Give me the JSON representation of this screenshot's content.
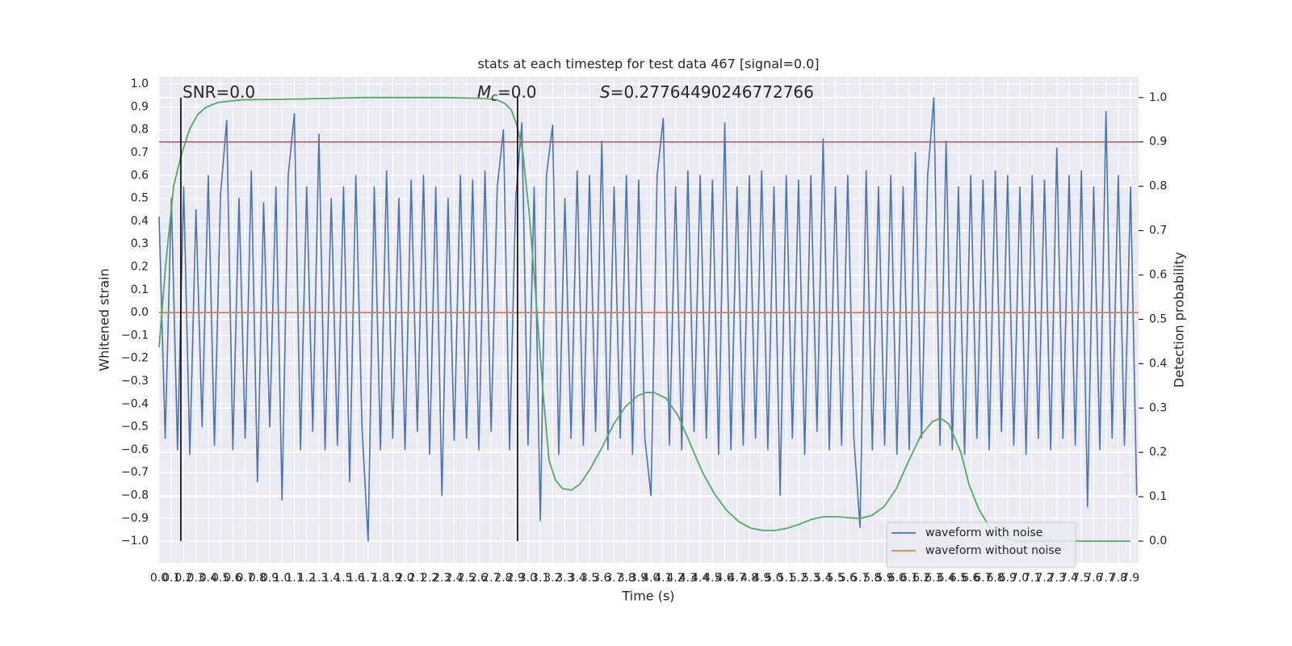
{
  "chart_data": {
    "type": "line",
    "title": "stats at each timestep for test data 467 [signal=0.0]",
    "xlabel": "Time (s)",
    "ylabel": "Whitened strain",
    "y2label": "Detection probability",
    "xlim": [
      0,
      7.965
    ],
    "ylim": [
      -1.095,
      1.032
    ],
    "y2lim": [
      -0.049,
      1.047
    ],
    "grid": true,
    "legend": "lower right",
    "xticks": [
      {
        "value": 0,
        "label": "0.0"
      },
      0.1,
      0.2,
      0.3,
      0.4,
      0.5,
      0.6,
      0.7,
      0.8,
      0.9,
      {
        "value": 1,
        "label": "1.0"
      },
      1.1,
      1.2,
      1.3,
      1.4,
      1.5,
      1.6,
      1.7,
      1.8,
      1.9,
      {
        "value": 2,
        "label": "2.0"
      },
      2.1,
      2.2,
      2.3,
      2.4,
      2.5,
      2.6,
      2.7,
      2.8,
      2.9,
      {
        "value": 3,
        "label": "3.0"
      },
      3.1,
      3.2,
      3.3,
      3.4,
      3.5,
      3.6,
      3.7,
      3.8,
      3.9,
      {
        "value": 4,
        "label": "4.0"
      },
      4.1,
      4.2,
      4.3,
      4.4,
      4.5,
      4.6,
      4.7,
      4.8,
      4.9,
      {
        "value": 5,
        "label": "5.0"
      },
      5.1,
      5.2,
      5.3,
      5.4,
      5.5,
      5.6,
      5.7,
      5.8,
      5.9,
      {
        "value": 6,
        "label": "6.0"
      },
      6.1,
      6.2,
      6.3,
      6.4,
      6.5,
      6.6,
      6.7,
      6.8,
      6.9,
      {
        "value": 7,
        "label": "7.0"
      },
      7.1,
      7.2,
      7.3,
      7.4,
      7.5,
      7.6,
      7.7,
      7.8,
      7.9
    ],
    "yticks": [
      {
        "value": -1,
        "label": "−1.0"
      },
      {
        "value": -0.9,
        "label": "−0.9"
      },
      {
        "value": -0.8,
        "label": "−0.8"
      },
      {
        "value": -0.7,
        "label": "−0.7"
      },
      {
        "value": -0.6,
        "label": "−0.6"
      },
      {
        "value": -0.5,
        "label": "−0.5"
      },
      {
        "value": -0.4,
        "label": "−0.4"
      },
      {
        "value": -0.3,
        "label": "−0.3"
      },
      {
        "value": -0.2,
        "label": "−0.2"
      },
      {
        "value": -0.1,
        "label": "−0.1"
      },
      {
        "value": 0,
        "label": "0.0"
      },
      0.1,
      0.2,
      0.3,
      0.4,
      0.5,
      0.6,
      0.7,
      0.8,
      0.9,
      {
        "value": 1,
        "label": "1.0"
      }
    ],
    "y2ticks": [
      {
        "value": 0,
        "label": "0.0"
      },
      0.1,
      0.2,
      0.3,
      0.4,
      0.5,
      0.6,
      0.7,
      0.8,
      0.9,
      {
        "value": 1,
        "label": "1.0"
      }
    ],
    "series": [
      {
        "name": "waveform with noise",
        "color": "#4c72b0",
        "axis": "y",
        "x": [
          0,
          0.05,
          0.1,
          0.15,
          0.2,
          0.25,
          0.3,
          0.35,
          0.4,
          0.45,
          0.5,
          0.55,
          0.6,
          0.65,
          0.7,
          0.75,
          0.8,
          0.85,
          0.9,
          0.95,
          1,
          1.05,
          1.1,
          1.15,
          1.2,
          1.25,
          1.3,
          1.35,
          1.4,
          1.45,
          1.5,
          1.55,
          1.6,
          1.65,
          1.7,
          1.75,
          1.8,
          1.85,
          1.9,
          1.95,
          2,
          2.05,
          2.1,
          2.15,
          2.2,
          2.25,
          2.3,
          2.35,
          2.4,
          2.45,
          2.5,
          2.55,
          2.6,
          2.65,
          2.7,
          2.75,
          2.8,
          2.85,
          2.9,
          2.95,
          3,
          3.05,
          3.1,
          3.15,
          3.2,
          3.25,
          3.3,
          3.35,
          3.4,
          3.45,
          3.5,
          3.55,
          3.6,
          3.65,
          3.7,
          3.75,
          3.8,
          3.85,
          3.9,
          3.95,
          4,
          4.05,
          4.1,
          4.15,
          4.2,
          4.25,
          4.3,
          4.35,
          4.4,
          4.45,
          4.5,
          4.55,
          4.6,
          4.65,
          4.7,
          4.75,
          4.8,
          4.85,
          4.9,
          4.95,
          5,
          5.05,
          5.1,
          5.15,
          5.2,
          5.25,
          5.3,
          5.35,
          5.4,
          5.45,
          5.5,
          5.55,
          5.6,
          5.65,
          5.7,
          5.75,
          5.8,
          5.85,
          5.9,
          5.95,
          6,
          6.05,
          6.1,
          6.15,
          6.2,
          6.25,
          6.3,
          6.35,
          6.4,
          6.45,
          6.5,
          6.55,
          6.6,
          6.65,
          6.7,
          6.75,
          6.8,
          6.85,
          6.9,
          6.95,
          7,
          7.05,
          7.1,
          7.15,
          7.2,
          7.25,
          7.3,
          7.35,
          7.4,
          7.45,
          7.5,
          7.55,
          7.6,
          7.65,
          7.7,
          7.75,
          7.8,
          7.85,
          7.9,
          7.95
        ],
        "values": [
          0.42,
          -0.55,
          0.5,
          -0.6,
          0.55,
          -0.62,
          0.45,
          -0.5,
          0.6,
          -0.58,
          0.52,
          0.84,
          -0.6,
          0.5,
          -0.55,
          0.62,
          -0.74,
          0.48,
          -0.5,
          0.55,
          -0.82,
          0.6,
          0.87,
          -0.6,
          0.55,
          -0.52,
          0.78,
          -0.6,
          0.5,
          -0.58,
          0.55,
          -0.74,
          0.6,
          -0.5,
          -1.0,
          0.55,
          -0.6,
          0.62,
          -0.55,
          0.5,
          -0.6,
          0.58,
          -0.52,
          0.6,
          -0.62,
          0.55,
          -0.8,
          0.5,
          -0.56,
          0.6,
          -0.55,
          0.58,
          -0.6,
          0.62,
          -0.52,
          0.55,
          0.8,
          -0.6,
          0.5,
          0.83,
          -0.58,
          0.55,
          -0.91,
          0.6,
          0.82,
          -0.62,
          0.5,
          -0.55,
          0.62,
          -0.58,
          0.6,
          -0.52,
          0.75,
          -0.6,
          0.55,
          -0.55,
          0.6,
          -0.62,
          0.58,
          -0.55,
          -0.8,
          0.6,
          0.85,
          -0.58,
          0.55,
          -0.6,
          0.62,
          -0.52,
          0.6,
          -0.55,
          0.58,
          -0.62,
          0.83,
          -0.6,
          0.55,
          -0.58,
          0.6,
          -0.55,
          0.62,
          -0.6,
          0.55,
          -0.8,
          0.6,
          -0.55,
          0.58,
          -0.62,
          0.6,
          -0.52,
          0.76,
          -0.6,
          0.55,
          -0.58,
          0.6,
          -0.55,
          -0.94,
          0.62,
          -0.6,
          0.55,
          -0.58,
          0.6,
          -0.62,
          0.55,
          -0.6,
          0.7,
          -0.55,
          0.6,
          0.94,
          -0.58,
          0.75,
          -0.6,
          0.55,
          -0.62,
          0.6,
          -0.55,
          0.58,
          -0.6,
          0.62,
          -0.52,
          0.6,
          -0.58,
          0.55,
          -0.62,
          0.6,
          -0.55,
          0.58,
          -0.6,
          0.72,
          -0.55,
          0.6,
          -0.58,
          0.62,
          -0.85,
          0.55,
          -0.6,
          0.88,
          -0.55,
          0.6,
          -0.58,
          0.55,
          -0.8
        ]
      },
      {
        "name": "waveform without noise",
        "color": "#dd8452",
        "axis": "y",
        "x": [
          0,
          7.965
        ],
        "values": [
          0,
          0
        ]
      },
      {
        "color": "#55a868",
        "axis": "y2",
        "x": [
          0,
          0.053,
          0.118,
          0.184,
          0.249,
          0.315,
          0.381,
          0.479,
          0.676,
          1.005,
          1.333,
          1.661,
          1.99,
          2.318,
          2.646,
          2.745,
          2.81,
          2.863,
          2.909,
          2.955,
          3.007,
          3.06,
          3.119,
          3.171,
          3.224,
          3.283,
          3.355,
          3.421,
          3.5,
          3.598,
          3.697,
          3.795,
          3.894,
          3.959,
          4.025,
          4.123,
          4.222,
          4.32,
          4.419,
          4.517,
          4.616,
          4.714,
          4.813,
          4.911,
          5.01,
          5.108,
          5.207,
          5.305,
          5.404,
          5.502,
          5.601,
          5.699,
          5.798,
          5.896,
          5.995,
          6.093,
          6.192,
          6.29,
          6.356,
          6.422,
          6.52,
          6.586,
          6.664,
          6.75,
          6.848,
          6.98,
          7.242,
          7.571,
          7.899
        ],
        "values": [
          0.437,
          0.62,
          0.8,
          0.874,
          0.929,
          0.962,
          0.978,
          0.989,
          0.995,
          0.996,
          0.998,
          1.0,
          1.0,
          1.0,
          0.998,
          0.995,
          0.987,
          0.973,
          0.938,
          0.883,
          0.747,
          0.565,
          0.346,
          0.182,
          0.137,
          0.118,
          0.115,
          0.128,
          0.16,
          0.209,
          0.264,
          0.304,
          0.328,
          0.335,
          0.335,
          0.322,
          0.282,
          0.219,
          0.155,
          0.106,
          0.069,
          0.044,
          0.029,
          0.024,
          0.024,
          0.029,
          0.038,
          0.049,
          0.055,
          0.055,
          0.053,
          0.051,
          0.058,
          0.078,
          0.118,
          0.179,
          0.237,
          0.27,
          0.277,
          0.264,
          0.2,
          0.128,
          0.073,
          0.033,
          0.009,
          0,
          0,
          0,
          0
        ]
      }
    ],
    "threshold": {
      "value": 0.9,
      "color": "#c44e52",
      "axis": "y2"
    },
    "vlines": [
      0.177,
      2.915
    ],
    "annotations": [
      {
        "text": "SNR=0.0"
      },
      {
        "symbol": "M",
        "subscript": "c",
        "text": "=0.0"
      },
      {
        "symbol": "S",
        "text": "=0.27764490246772766"
      }
    ]
  }
}
